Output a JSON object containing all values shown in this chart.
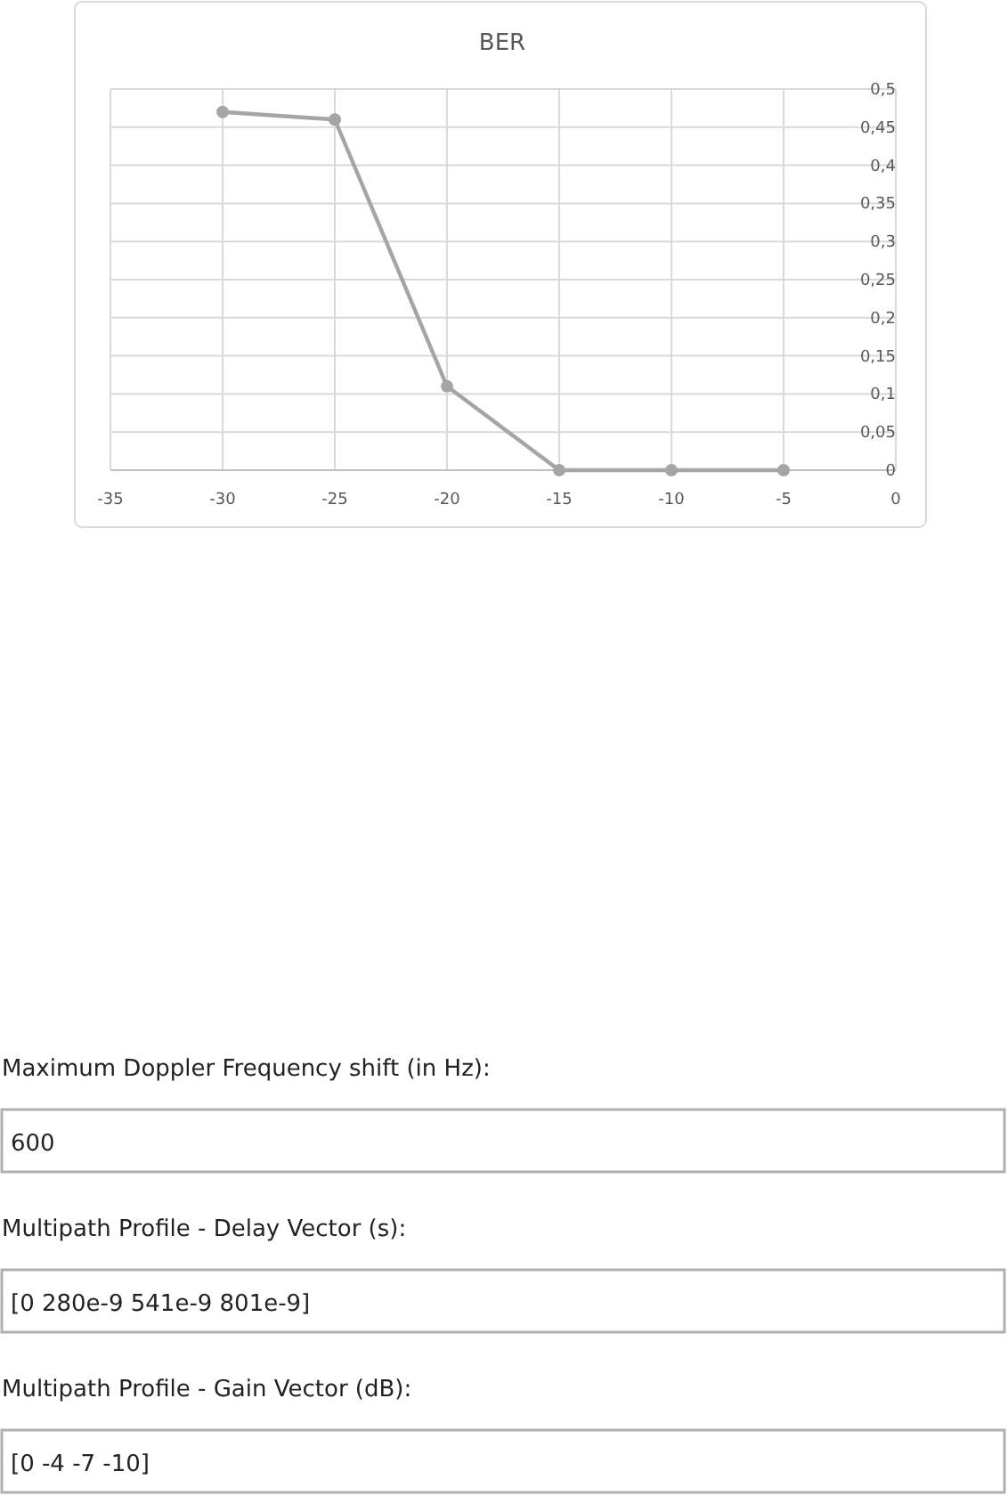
{
  "chart_data": {
    "type": "line",
    "title": "BER",
    "x": [
      -30,
      -25,
      -20,
      -15,
      -10,
      -5
    ],
    "series": [
      {
        "color": "#a5a5a5",
        "values": [
          0.47,
          0.46,
          0.11,
          0,
          0,
          0
        ]
      }
    ],
    "xlim": [
      -35,
      0
    ],
    "xticks": [
      -35,
      -30,
      -25,
      -20,
      -15,
      -10,
      -5,
      0
    ],
    "ylim": [
      0,
      0.5
    ],
    "yticks": [
      0,
      {
        "value": 0.05,
        "label": "0,05"
      },
      {
        "value": 0.1,
        "label": "0,1"
      },
      {
        "value": 0.15,
        "label": "0,15"
      },
      {
        "value": 0.2,
        "label": "0,2"
      },
      {
        "value": 0.25,
        "label": "0,25"
      },
      {
        "value": 0.3,
        "label": "0,3"
      },
      {
        "value": 0.35,
        "label": "0,35"
      },
      {
        "value": 0.4,
        "label": "0,4"
      },
      {
        "value": 0.45,
        "label": "0,45"
      },
      {
        "value": 0.5,
        "label": "0,5"
      }
    ],
    "grid": true,
    "marker": "circle",
    "line_style": "solid",
    "annotations": [
      "Maximum Doppler Frequency shift (in Hz):",
      "600",
      "Multipath Profile - Delay Vector (s):",
      "[0 280e-9 541e-9 801e-9]",
      "Multipath Profile - Gain Vector (dB):",
      "[0 -4 -7 -10]"
    ]
  }
}
